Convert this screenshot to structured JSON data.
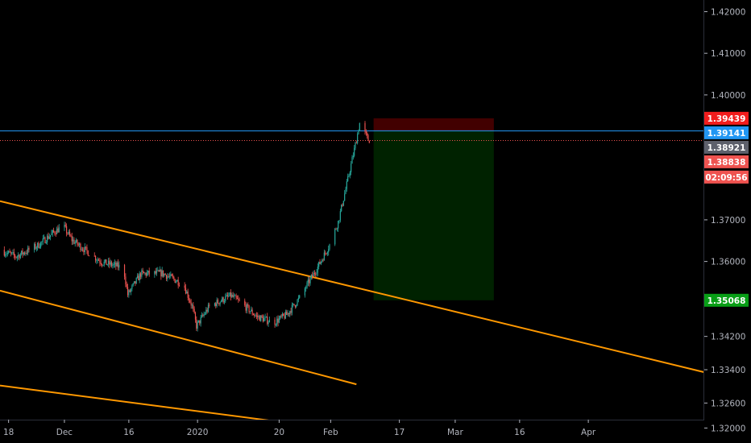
{
  "colors": {
    "background": "#000000",
    "axis_text": "#b2b5be",
    "candle_up": "#26a69a",
    "candle_down": "#ef5350",
    "trendline": "#ff9800",
    "stop_zone": "rgba(120,0,0,0.55)",
    "target_zone": "rgba(0,80,0,0.42)",
    "hline_blue": "#2196f3",
    "hline_red_dotted": "#ef5350",
    "tag_stop": "#f21d1d",
    "tag_blue": "#2196f3",
    "tag_last": "#5d606b",
    "tag_red": "#ef5350",
    "tag_target": "#089e16"
  },
  "chart_data": {
    "type": "candlestick",
    "title": "",
    "price_axis": {
      "ylim": [
        1.3164,
        1.4228
      ],
      "ticks": [
        "1.42000",
        "1.41000",
        "1.40000",
        "1.37000",
        "1.36000",
        "1.34200",
        "1.33400",
        "1.32600",
        "1.32000"
      ]
    },
    "time_axis": {
      "xlim": [
        "2019-11-16",
        "2020-04-28"
      ],
      "ticks": [
        {
          "date": "2019-11-18",
          "label": "18"
        },
        {
          "date": "2019-12-01",
          "label": "Dec"
        },
        {
          "date": "2019-12-16",
          "label": "16"
        },
        {
          "date": "2020-01-01",
          "label": "2020"
        },
        {
          "date": "2020-01-20",
          "label": "20"
        },
        {
          "date": "2020-02-01",
          "label": "Feb"
        },
        {
          "date": "2020-02-17",
          "label": "17"
        },
        {
          "date": "2020-03-01",
          "label": "Mar"
        },
        {
          "date": "2020-03-16",
          "label": "16"
        },
        {
          "date": "2020-04-01",
          "label": "Apr"
        }
      ]
    },
    "price_path": [
      {
        "date": "2019-11-16",
        "price": 1.3628
      },
      {
        "date": "2019-11-20",
        "price": 1.3612
      },
      {
        "date": "2019-11-25",
        "price": 1.3638
      },
      {
        "date": "2019-11-29",
        "price": 1.3672
      },
      {
        "date": "2019-12-01",
        "price": 1.3685
      },
      {
        "date": "2019-12-03",
        "price": 1.3652
      },
      {
        "date": "2019-12-06",
        "price": 1.3628
      },
      {
        "date": "2019-12-10",
        "price": 1.3598
      },
      {
        "date": "2019-12-15",
        "price": 1.3585
      },
      {
        "date": "2019-12-16",
        "price": 1.352
      },
      {
        "date": "2019-12-19",
        "price": 1.357
      },
      {
        "date": "2019-12-24",
        "price": 1.3572
      },
      {
        "date": "2019-12-29",
        "price": 1.3545
      },
      {
        "date": "2019-12-31",
        "price": 1.3492
      },
      {
        "date": "2020-01-01",
        "price": 1.3445
      },
      {
        "date": "2020-01-04",
        "price": 1.3492
      },
      {
        "date": "2020-01-09",
        "price": 1.3518
      },
      {
        "date": "2020-01-12",
        "price": 1.3495
      },
      {
        "date": "2020-01-15",
        "price": 1.3468
      },
      {
        "date": "2020-01-19",
        "price": 1.3453
      },
      {
        "date": "2020-01-22",
        "price": 1.3472
      },
      {
        "date": "2020-01-25",
        "price": 1.3512
      },
      {
        "date": "2020-01-27",
        "price": 1.3548
      },
      {
        "date": "2020-01-29",
        "price": 1.3582
      },
      {
        "date": "2020-02-01",
        "price": 1.364
      },
      {
        "date": "2020-02-03",
        "price": 1.3695
      },
      {
        "date": "2020-02-05",
        "price": 1.3785
      },
      {
        "date": "2020-02-07",
        "price": 1.388
      },
      {
        "date": "2020-02-08",
        "price": 1.3932
      },
      {
        "date": "2020-02-10",
        "price": 1.3892
      }
    ],
    "trendlines": [
      {
        "start": {
          "date": "2019-11-16",
          "price": 1.3745
        },
        "end": {
          "date": "2020-04-28",
          "price": 1.3334
        }
      },
      {
        "start": {
          "date": "2019-11-16",
          "price": 1.353
        },
        "end": {
          "date": "2020-02-07",
          "price": 1.3305
        }
      },
      {
        "start": {
          "date": "2019-11-16",
          "price": 1.3302
        },
        "end": {
          "date": "2020-03-01",
          "price": 1.316
        }
      }
    ],
    "position": {
      "type": "short",
      "start_date": "2020-02-11",
      "end_date": "2020-03-10",
      "stop": 1.39439,
      "entry": 1.39141,
      "target": 1.35068
    },
    "horizontal_lines": [
      {
        "price": 1.39141,
        "style": "solid",
        "color_key": "hline_blue"
      },
      {
        "price": 1.38921,
        "style": "dotted",
        "color_key": "hline_red_dotted"
      }
    ],
    "price_tags": [
      {
        "price": 1.39439,
        "label": "1.39439",
        "color_key": "tag_stop"
      },
      {
        "price": 1.39141,
        "label": "1.39141",
        "color_key": "tag_blue"
      },
      {
        "price": 1.38921,
        "label": "1.38921",
        "color_key": "tag_last"
      },
      {
        "price": 1.38838,
        "label": "1.38838",
        "color_key": "tag_red"
      },
      {
        "price": 1.35068,
        "label": "1.35068",
        "color_key": "tag_target"
      }
    ],
    "countdown": "02:09:56"
  }
}
